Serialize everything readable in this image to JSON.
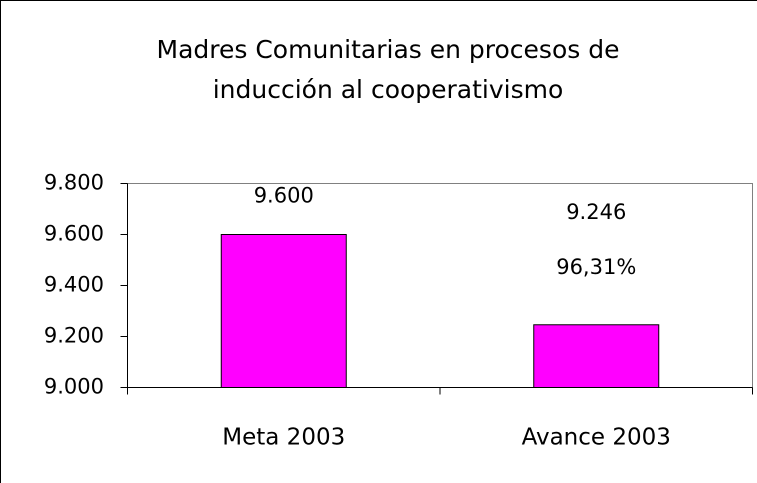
{
  "chart_data": {
    "type": "bar",
    "title": "Madres Comunitarias en procesos de inducción al cooperativismo",
    "categories": [
      "Meta 2003",
      "Avance 2003"
    ],
    "values": [
      9600,
      9246
    ],
    "value_labels": [
      "9.600",
      "9.246"
    ],
    "annotation": "96,31%",
    "color": "#ff00ff",
    "ylim": [
      9000,
      9800
    ],
    "yticks": [
      {
        "value": 9000,
        "label": "9.000"
      },
      {
        "value": 9200,
        "label": "9.200"
      },
      {
        "value": 9400,
        "label": "9.400"
      },
      {
        "value": 9600,
        "label": "9.600"
      },
      {
        "value": 9800,
        "label": "9.800"
      }
    ],
    "grid": false
  }
}
